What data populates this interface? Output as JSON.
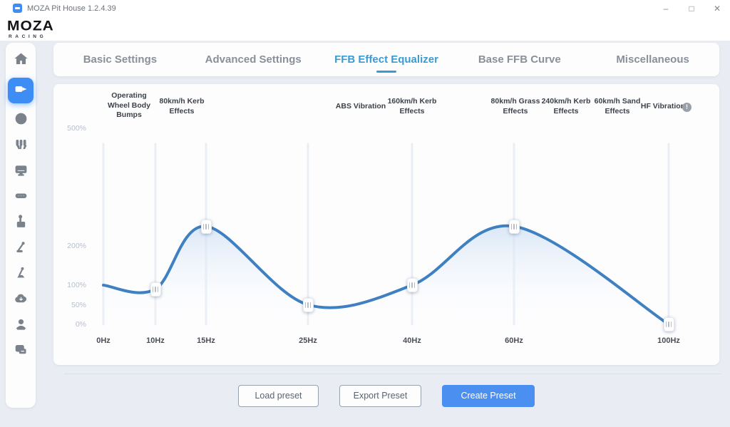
{
  "window": {
    "title": "MOZA Pit House 1.2.4.39",
    "minimize": "–",
    "maximize": "□",
    "close": "✕"
  },
  "logo": {
    "line1": "MOZA",
    "line2": "RACING"
  },
  "sidebar": {
    "icons": [
      "home",
      "wheel-base",
      "steering-wheel",
      "pedals",
      "monitor",
      "dash-display",
      "shifter",
      "handbrake",
      "sequential-lever",
      "cloud",
      "account",
      "feedback"
    ],
    "active_icon": "wheel-base",
    "active_color": "#3e8df5"
  },
  "tabs": {
    "items": [
      {
        "label": "Basic Settings",
        "active": false
      },
      {
        "label": "Advanced Settings",
        "active": false
      },
      {
        "label": "FFB Effect Equalizer",
        "active": true
      },
      {
        "label": "Base FFB Curve",
        "active": false
      },
      {
        "label": "Miscellaneous",
        "active": false
      }
    ],
    "active_color": "#3a9bd3"
  },
  "chart_data": {
    "type": "line",
    "title": "FFB Effect Equalizer",
    "bands": [
      "Operating Wheel Body Bumps",
      "80km/h Kerb Effects",
      "ABS Vibration",
      "160km/h Kerb Effects",
      "80km/h Grass Effects",
      "240km/h Kerb Effects",
      "60km/h Sand Effects",
      "HF Vibration"
    ],
    "hf_badge": "!",
    "x_ticks": [
      "0Hz",
      "10Hz",
      "15Hz",
      "25Hz",
      "40Hz",
      "60Hz",
      "100Hz"
    ],
    "x_hz": [
      0,
      10,
      15,
      25,
      40,
      60,
      100
    ],
    "y_ticks": [
      "500%",
      "200%",
      "100%",
      "50%",
      "0%"
    ],
    "y_tick_values": [
      500,
      200,
      100,
      50,
      0
    ],
    "values_percent": [
      100,
      90,
      250,
      50,
      100,
      250,
      0
    ],
    "ylim": [
      0,
      500
    ],
    "curve_color": "#3f80c2",
    "fill_color": "#c9dcf2",
    "track_color": "#e9eef5",
    "grid": "vertical-slider-tracks",
    "legend": "none"
  },
  "footer": {
    "load": "Load preset",
    "export": "Export Preset",
    "create": "Create Preset",
    "create_color": "#4b90f0"
  }
}
